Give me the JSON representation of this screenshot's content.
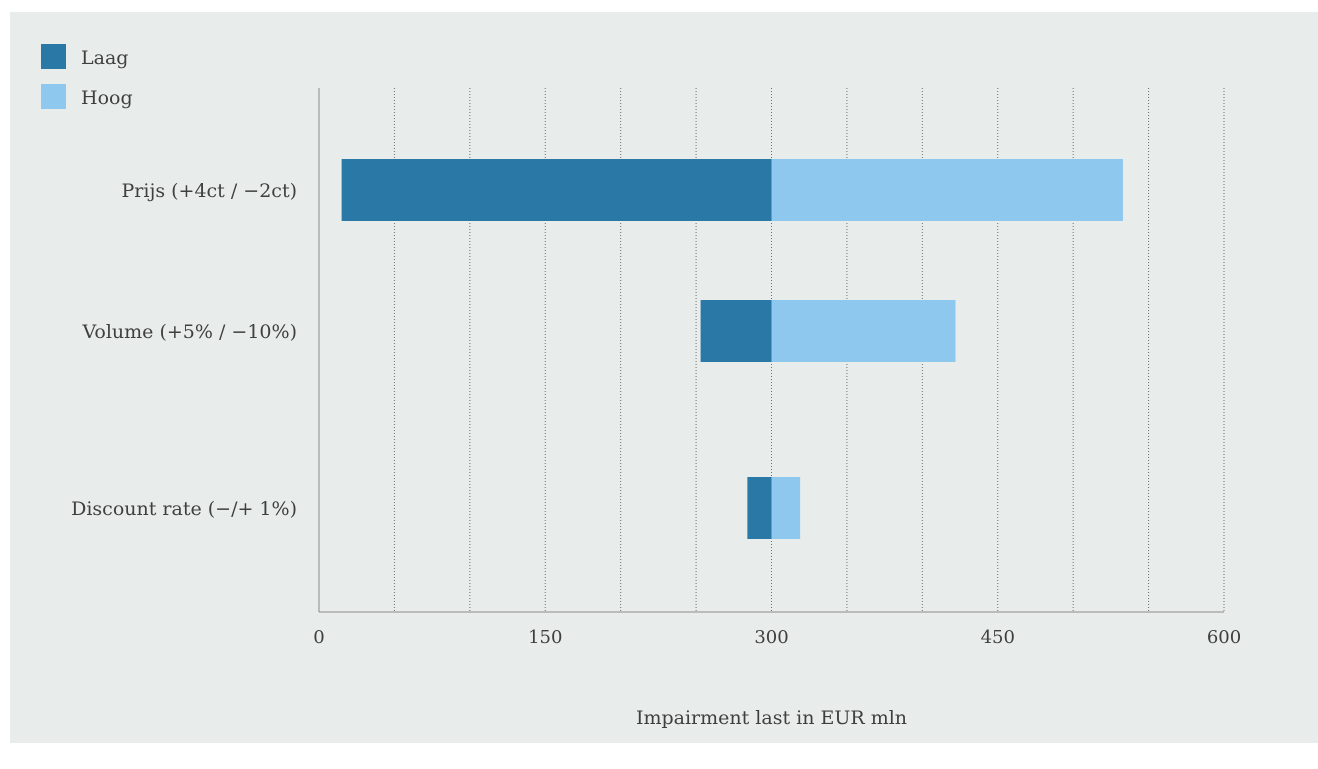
{
  "chart_data": {
    "type": "bar",
    "orientation": "horizontal",
    "stacked": "tornado",
    "base_value": 300,
    "categories": [
      "Prijs (+4ct / −2ct)",
      "Volume (+5% / −10%)",
      "Discount rate (−/+ 1%)"
    ],
    "series": [
      {
        "name": "Laag",
        "color": "#2a78a6",
        "low": [
          15,
          253,
          284
        ],
        "high": [
          300,
          300,
          300
        ]
      },
      {
        "name": "Hoog",
        "color": "#8ec8ee",
        "low": [
          300,
          300,
          300
        ],
        "high": [
          533,
          422,
          319
        ]
      }
    ],
    "xlabel": "Impairment last in EUR mln",
    "xlim": [
      0,
      600
    ],
    "xticks": [
      "0",
      "150",
      "300",
      "450",
      "600"
    ],
    "minor_gridlines_every": 50,
    "grid": true,
    "legend_position": "top-left"
  }
}
